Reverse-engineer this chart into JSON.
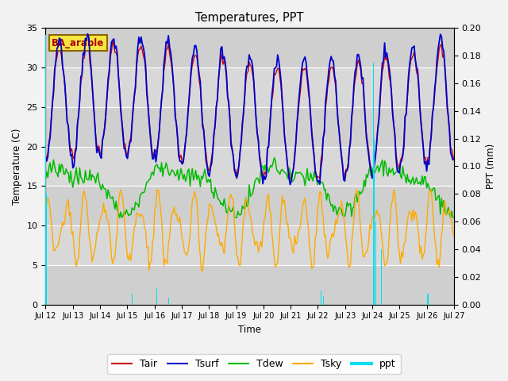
{
  "title": "Temperatures, PPT",
  "xlabel": "Time",
  "ylabel_left": "Temperature (C)",
  "ylabel_right": "PPT (mm)",
  "site_label": "BA_arable",
  "xlim": [
    0,
    15
  ],
  "ylim_left": [
    0,
    35
  ],
  "ylim_right": [
    0.0,
    0.2
  ],
  "x_tick_labels": [
    "Jul 12",
    "Jul 13",
    "Jul 14",
    "Jul 15",
    "Jul 16",
    "Jul 17",
    "Jul 18",
    "Jul 19",
    "Jul 20",
    "Jul 21",
    "Jul 22",
    "Jul 23",
    "Jul 24",
    "Jul 25",
    "Jul 26",
    "Jul 27"
  ],
  "legend_labels": [
    "Tair",
    "Tsurf",
    "Tdew",
    "Tsky",
    "ppt"
  ],
  "tair_color": "#cc0000",
  "tsurf_color": "#0000cc",
  "tdew_color": "#00bb00",
  "tsky_color": "#ffaa00",
  "ppt_color": "#00ddee",
  "fig_bg": "#f2f2f2",
  "plot_bg": "#d8d8d8",
  "grid_color": "#ffffff"
}
